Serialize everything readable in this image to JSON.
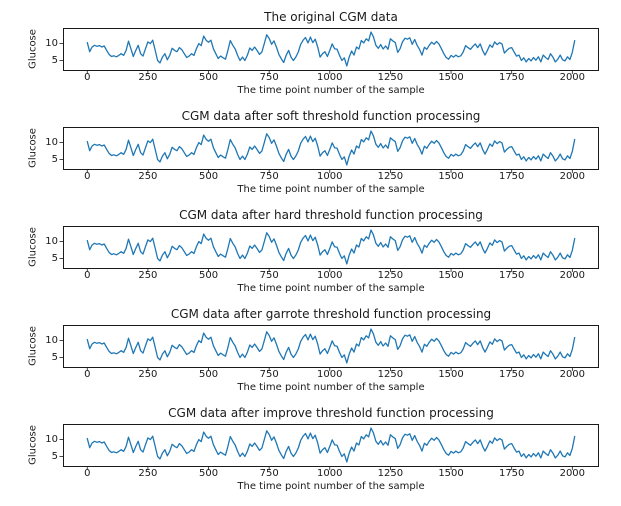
{
  "figure": {
    "background": "#ffffff",
    "text_color": "#1a1a1a",
    "spine_color": "#1a1a1a"
  },
  "chart_data": {
    "type": "line",
    "ylabel": "Glucose",
    "xlabel": "The time point number of the sample",
    "x_ticks": [
      0,
      250,
      500,
      750,
      1000,
      1250,
      1500,
      1750,
      2000
    ],
    "y_ticks": [
      5,
      10
    ],
    "xlim": [
      -100,
      2110
    ],
    "ylim": [
      2.2,
      14.6
    ],
    "grid": false,
    "legend_position": "none",
    "line_color": "#1f77b4",
    "subplots": [
      {
        "title": "The original CGM data"
      },
      {
        "title": "CGM data after soft threshold function processing"
      },
      {
        "title": "CGM data after hard threshold function processing"
      },
      {
        "title": "CGM data after garrote threshold function processing"
      },
      {
        "title": "CGM data after improve threshold function processing"
      }
    ],
    "shared_series": {
      "name": "glucose",
      "x_start": 0,
      "x_step": 10,
      "y": [
        10.3,
        7.6,
        9.0,
        9.5,
        9.2,
        9.4,
        9.0,
        9.3,
        8.0,
        6.8,
        6.2,
        6.4,
        6.1,
        6.5,
        7.0,
        6.5,
        8.0,
        10.7,
        8.5,
        6.2,
        8.0,
        9.5,
        7.0,
        6.3,
        8.5,
        10.5,
        10.0,
        11.0,
        8.0,
        5.0,
        4.3,
        6.0,
        7.0,
        5.2,
        6.5,
        8.6,
        8.0,
        7.6,
        8.8,
        8.2,
        7.0,
        5.9,
        6.3,
        7.0,
        6.5,
        8.5,
        10.0,
        9.4,
        12.2,
        11.0,
        10.4,
        11.0,
        8.5,
        7.0,
        5.6,
        6.3,
        5.8,
        5.4,
        8.0,
        10.9,
        9.5,
        8.4,
        6.5,
        5.0,
        6.0,
        5.0,
        6.5,
        8.7,
        8.0,
        9.0,
        8.0,
        6.8,
        7.5,
        10.0,
        12.6,
        11.5,
        9.8,
        10.8,
        9.0,
        6.8,
        5.5,
        4.4,
        6.5,
        8.0,
        6.0,
        5.0,
        6.0,
        7.5,
        9.8,
        11.0,
        11.8,
        10.2,
        11.9,
        10.3,
        11.3,
        9.0,
        6.0,
        7.0,
        7.6,
        6.2,
        8.0,
        9.9,
        8.5,
        8.3,
        6.5,
        5.0,
        5.8,
        3.4,
        6.0,
        7.8,
        6.6,
        9.0,
        8.4,
        10.9,
        10.2,
        11.4,
        10.8,
        13.4,
        12.0,
        9.5,
        8.6,
        9.7,
        8.4,
        9.3,
        8.3,
        11.4,
        10.8,
        10.3,
        7.4,
        8.5,
        10.5,
        11.6,
        11.3,
        11.7,
        9.8,
        11.2,
        9.5,
        8.3,
        6.6,
        8.9,
        8.3,
        9.5,
        10.4,
        9.8,
        10.6,
        9.9,
        8.5,
        7.0,
        5.9,
        5.4,
        6.5,
        6.0,
        6.6,
        6.1,
        6.4,
        7.5,
        9.4,
        8.8,
        8.3,
        9.2,
        9.9,
        8.8,
        9.9,
        8.0,
        6.6,
        8.0,
        9.6,
        8.9,
        10.5,
        9.7,
        10.3,
        9.9,
        7.2,
        8.0,
        8.6,
        8.8,
        7.5,
        6.3,
        6.6,
        5.0,
        5.8,
        4.6,
        5.6,
        4.9,
        5.9,
        5.1,
        6.1,
        4.6,
        6.6,
        5.9,
        5.3,
        7.0,
        6.0,
        4.6,
        5.4,
        6.6,
        5.2,
        4.9,
        6.1,
        5.3,
        7.4,
        10.9
      ]
    }
  }
}
